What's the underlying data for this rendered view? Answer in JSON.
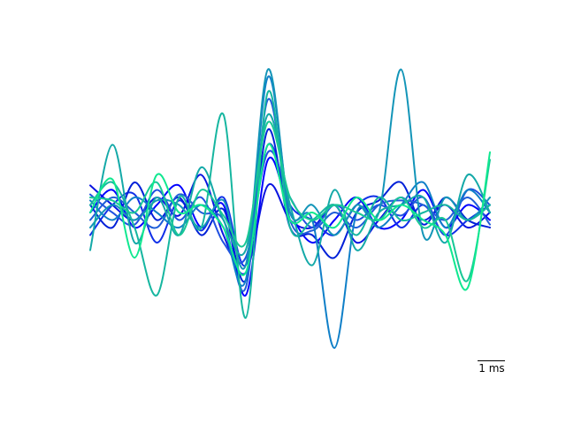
{
  "chart_data": {
    "type": "line",
    "title": "",
    "xlabel": "",
    "ylabel": "",
    "axes_visible": false,
    "grid": false,
    "legend": "none",
    "x_unit": "ms",
    "xlim": [
      0,
      9
    ],
    "ylim": [
      -1.0,
      1.0
    ],
    "scale_bar": {
      "label": "1 ms",
      "length": 1,
      "unit": "ms",
      "position": "bottom-right"
    },
    "x": [
      0,
      0.5,
      1,
      1.5,
      2,
      2.5,
      3,
      3.5,
      4,
      4.5,
      5,
      5.5,
      6,
      6.5,
      7,
      7.5,
      8,
      8.5,
      9
    ],
    "series": [
      {
        "color": "#0a14e0",
        "values": [
          0.18,
          0.05,
          -0.05,
          0.1,
          -0.02,
          0.25,
          -0.15,
          -0.4,
          0.18,
          -0.05,
          -0.1,
          0.05,
          -0.2,
          -0.05,
          0.1,
          -0.05,
          0.05,
          -0.1,
          0.0
        ]
      },
      {
        "color": "#0000ff",
        "values": [
          0.0,
          0.15,
          -0.1,
          0.05,
          0.18,
          -0.1,
          0.05,
          -0.55,
          0.35,
          0.0,
          -0.2,
          -0.05,
          0.1,
          -0.1,
          -0.05,
          0.15,
          -0.1,
          0.05,
          -0.05
        ]
      },
      {
        "color": "#1030e8",
        "values": [
          -0.15,
          0.05,
          0.12,
          -0.2,
          0.08,
          -0.12,
          0.1,
          -0.35,
          0.45,
          0.05,
          -0.05,
          -0.15,
          0.05,
          0.1,
          -0.1,
          0.05,
          -0.15,
          -0.05,
          0.05
        ]
      },
      {
        "color": "#0020d8",
        "values": [
          0.05,
          -0.1,
          0.2,
          -0.05,
          0.1,
          -0.15,
          0.02,
          -0.45,
          0.55,
          -0.1,
          -0.15,
          -0.3,
          0.0,
          0.08,
          0.2,
          -0.08,
          0.1,
          -0.05,
          -0.1
        ]
      },
      {
        "color": "#2050e0",
        "values": [
          0.12,
          0.0,
          -0.08,
          0.15,
          -0.05,
          0.1,
          -0.2,
          -0.3,
          0.4,
          0.1,
          -0.1,
          0.05,
          -0.05,
          0.05,
          -0.02,
          0.1,
          -0.15,
          0.15,
          0.05
        ]
      },
      {
        "color": "#1f5ed8",
        "values": [
          -0.05,
          0.1,
          0.0,
          -0.1,
          0.12,
          0.0,
          -0.05,
          -0.5,
          0.75,
          -0.05,
          -0.12,
          0.0,
          -0.1,
          0.05,
          0.08,
          0.05,
          -0.05,
          0.1,
          -0.08
        ]
      },
      {
        "color": "#0f7fc8",
        "values": [
          0.08,
          -0.05,
          0.1,
          0.0,
          -0.1,
          0.05,
          -0.1,
          -0.45,
          0.9,
          0.0,
          -0.05,
          -0.9,
          0.0,
          -0.1,
          0.05,
          0.2,
          -0.1,
          0.15,
          0.0
        ]
      },
      {
        "color": "#1395b8",
        "values": [
          -0.1,
          0.05,
          -0.05,
          0.08,
          0.05,
          -0.1,
          0.08,
          -0.35,
          0.95,
          0.0,
          0.05,
          -0.15,
          0.05,
          0.0,
          0.95,
          -0.15,
          0.1,
          -0.05,
          0.1
        ]
      },
      {
        "color": "#14a9a8",
        "values": [
          -0.25,
          0.45,
          -0.2,
          0.1,
          -0.15,
          0.3,
          -0.05,
          -0.25,
          0.65,
          0.05,
          -0.35,
          0.15,
          -0.25,
          0.0,
          0.05,
          0.1,
          -0.2,
          0.25,
          0.0
        ]
      },
      {
        "color": "#16b6a0",
        "values": [
          0.05,
          0.2,
          -0.1,
          -0.55,
          0.1,
          -0.1,
          0.65,
          -0.7,
          0.8,
          -0.1,
          -0.05,
          0.05,
          -0.15,
          0.1,
          -0.05,
          0.0,
          0.05,
          -0.05,
          0.05
        ]
      },
      {
        "color": "#18c896",
        "values": [
          0.1,
          0.08,
          0.0,
          0.2,
          -0.15,
          0.15,
          -0.02,
          -0.2,
          0.6,
          0.1,
          -0.05,
          0.05,
          0.0,
          -0.05,
          0.1,
          -0.1,
          -0.05,
          -0.45,
          0.35
        ]
      },
      {
        "color": "#10e890",
        "values": [
          0.0,
          0.22,
          -0.3,
          0.25,
          0.0,
          0.05,
          -0.1,
          -0.4,
          0.45,
          -0.05,
          0.0,
          -0.1,
          0.1,
          -0.05,
          0.05,
          -0.05,
          -0.15,
          -0.5,
          0.4
        ]
      }
    ]
  }
}
